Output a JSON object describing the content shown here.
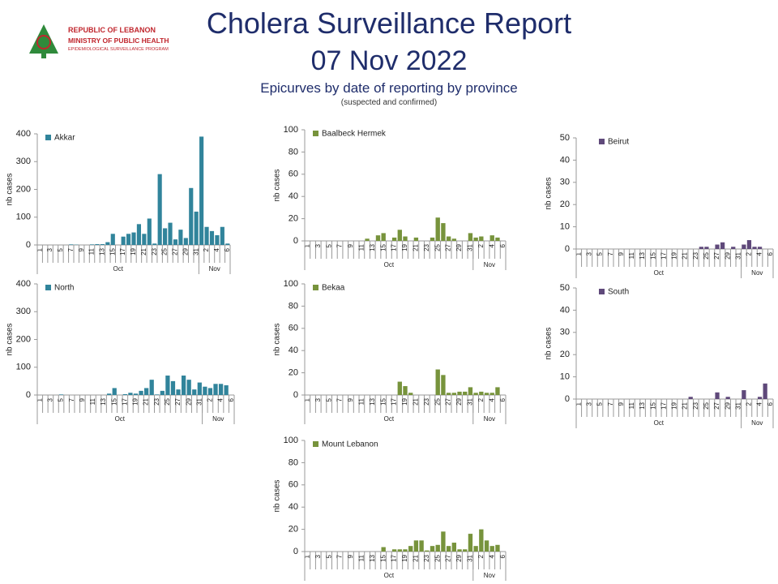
{
  "header": {
    "logo_line1": "REPUBLIC OF LEBANON",
    "logo_line2": "MINISTRY OF PUBLIC HEALTH",
    "logo_line3": "EPIDEMIOLOGICAL SURVEILLANCE PROGRAM",
    "title": "Cholera Surveillance Report",
    "date": "07 Nov 2022",
    "subtitle": "Epicurves by date of reporting by province",
    "note": "(suspected and confirmed)"
  },
  "chart_data": [
    {
      "type": "bar",
      "y_label": "nb cases",
      "ylim": [
        0,
        400
      ],
      "yticks": [
        0,
        100,
        200,
        300,
        400
      ],
      "categories": [
        "1",
        null,
        "3",
        null,
        "5",
        null,
        "7",
        null,
        "9",
        null,
        "11",
        null,
        "13",
        null,
        "15",
        null,
        "17",
        null,
        "19",
        null,
        "21",
        null,
        "23",
        null,
        "25",
        null,
        "27",
        null,
        "29",
        null,
        "31",
        null,
        "2",
        null,
        "4",
        null,
        "6"
      ],
      "months": [
        "Oct",
        "Oct",
        "Oct",
        "Oct",
        "Oct",
        "Oct",
        "Oct",
        "Oct",
        "Oct",
        "Oct",
        "Oct",
        "Oct",
        "Oct",
        "Oct",
        "Oct",
        "Oct",
        "Oct",
        "Oct",
        "Oct",
        "Oct",
        "Oct",
        "Oct",
        "Oct",
        "Oct",
        "Oct",
        "Oct",
        "Oct",
        "Oct",
        "Oct",
        "Oct",
        "Oct",
        "Nov",
        "Nov",
        "Nov",
        "Nov",
        "Nov",
        "Nov"
      ],
      "series": [
        {
          "name": "Akkar",
          "color": "#31849b",
          "values": [
            0,
            0,
            0,
            0,
            0,
            0,
            2,
            1,
            0,
            0,
            2,
            3,
            3,
            10,
            40,
            0,
            30,
            40,
            45,
            75,
            40,
            95,
            5,
            255,
            60,
            80,
            20,
            55,
            25,
            205,
            120,
            390,
            65,
            50,
            35,
            65,
            5
          ]
        }
      ]
    },
    {
      "type": "bar",
      "y_label": "nb cases",
      "ylim": [
        0,
        100
      ],
      "yticks": [
        0,
        20,
        40,
        60,
        80,
        100
      ],
      "categories": [
        "1",
        null,
        "3",
        null,
        "5",
        null,
        "7",
        null,
        "9",
        null,
        "11",
        null,
        "13",
        null,
        "15",
        null,
        "17",
        null,
        "19",
        null,
        "21",
        null,
        "23",
        null,
        "25",
        null,
        "27",
        null,
        "29",
        null,
        "31",
        null,
        "2",
        null,
        "4",
        null,
        "6"
      ],
      "months": [
        "Oct",
        "Oct",
        "Oct",
        "Oct",
        "Oct",
        "Oct",
        "Oct",
        "Oct",
        "Oct",
        "Oct",
        "Oct",
        "Oct",
        "Oct",
        "Oct",
        "Oct",
        "Oct",
        "Oct",
        "Oct",
        "Oct",
        "Oct",
        "Oct",
        "Oct",
        "Oct",
        "Oct",
        "Oct",
        "Oct",
        "Oct",
        "Oct",
        "Oct",
        "Oct",
        "Oct",
        "Nov",
        "Nov",
        "Nov",
        "Nov",
        "Nov",
        "Nov"
      ],
      "series": [
        {
          "name": "Baalbeck Hermek",
          "color": "#77933c",
          "values": [
            0,
            0,
            0,
            0,
            0,
            0,
            0,
            0,
            0,
            0,
            0,
            2,
            0,
            5,
            7,
            0,
            3,
            10,
            4,
            0,
            3,
            0,
            0,
            3,
            21,
            16,
            4,
            2,
            0,
            0,
            7,
            3,
            4,
            0,
            5,
            3,
            0
          ]
        }
      ]
    },
    {
      "type": "bar",
      "y_label": "nb cases",
      "ylim": [
        0,
        50
      ],
      "yticks": [
        0,
        10,
        20,
        30,
        40,
        50
      ],
      "categories": [
        "1",
        null,
        "3",
        null,
        "5",
        null,
        "7",
        null,
        "9",
        null,
        "11",
        null,
        "13",
        null,
        "15",
        null,
        "17",
        null,
        "19",
        null,
        "21",
        null,
        "23",
        null,
        "25",
        null,
        "27",
        null,
        "29",
        null,
        "31",
        null,
        "2",
        null,
        "4",
        null,
        "6"
      ],
      "months": [
        "Oct",
        "Oct",
        "Oct",
        "Oct",
        "Oct",
        "Oct",
        "Oct",
        "Oct",
        "Oct",
        "Oct",
        "Oct",
        "Oct",
        "Oct",
        "Oct",
        "Oct",
        "Oct",
        "Oct",
        "Oct",
        "Oct",
        "Oct",
        "Oct",
        "Oct",
        "Oct",
        "Oct",
        "Oct",
        "Oct",
        "Oct",
        "Oct",
        "Oct",
        "Oct",
        "Oct",
        "Nov",
        "Nov",
        "Nov",
        "Nov",
        "Nov",
        "Nov"
      ],
      "series": [
        {
          "name": "Beirut",
          "color": "#5f497a",
          "values": [
            0,
            0,
            0,
            0,
            0,
            0,
            0,
            0,
            0,
            0,
            0,
            0,
            0,
            0,
            0,
            0,
            0,
            0,
            0,
            0,
            0,
            0,
            0,
            1,
            1,
            0,
            2,
            3,
            0,
            1,
            0,
            2,
            4,
            1,
            1,
            0,
            0
          ]
        }
      ]
    },
    {
      "type": "bar",
      "y_label": "nb cases",
      "ylim": [
        0,
        400
      ],
      "yticks": [
        0,
        100,
        200,
        300,
        400
      ],
      "categories": [
        "1",
        null,
        "3",
        null,
        "5",
        null,
        "7",
        null,
        "9",
        null,
        "11",
        null,
        "13",
        null,
        "15",
        null,
        "17",
        null,
        "19",
        null,
        "21",
        null,
        "23",
        null,
        "25",
        null,
        "27",
        null,
        "29",
        null,
        "31",
        null,
        "2",
        null,
        "4",
        null,
        "6"
      ],
      "months": [
        "Oct",
        "Oct",
        "Oct",
        "Oct",
        "Oct",
        "Oct",
        "Oct",
        "Oct",
        "Oct",
        "Oct",
        "Oct",
        "Oct",
        "Oct",
        "Oct",
        "Oct",
        "Oct",
        "Oct",
        "Oct",
        "Oct",
        "Oct",
        "Oct",
        "Oct",
        "Oct",
        "Oct",
        "Oct",
        "Oct",
        "Oct",
        "Oct",
        "Oct",
        "Oct",
        "Oct",
        "Nov",
        "Nov",
        "Nov",
        "Nov",
        "Nov",
        "Nov"
      ],
      "series": [
        {
          "name": "North",
          "color": "#31849b",
          "values": [
            0,
            0,
            0,
            0,
            2,
            0,
            0,
            0,
            0,
            0,
            0,
            0,
            0,
            5,
            25,
            0,
            3,
            8,
            5,
            15,
            25,
            55,
            2,
            15,
            70,
            50,
            20,
            70,
            55,
            20,
            45,
            30,
            25,
            40,
            40,
            35,
            0
          ]
        }
      ]
    },
    {
      "type": "bar",
      "y_label": "nb cases",
      "ylim": [
        0,
        100
      ],
      "yticks": [
        0,
        20,
        40,
        60,
        80,
        100
      ],
      "categories": [
        "1",
        null,
        "3",
        null,
        "5",
        null,
        "7",
        null,
        "9",
        null,
        "11",
        null,
        "13",
        null,
        "15",
        null,
        "17",
        null,
        "19",
        null,
        "21",
        null,
        "23",
        null,
        "25",
        null,
        "27",
        null,
        "29",
        null,
        "31",
        null,
        "2",
        null,
        "4",
        null,
        "6"
      ],
      "months": [
        "Oct",
        "Oct",
        "Oct",
        "Oct",
        "Oct",
        "Oct",
        "Oct",
        "Oct",
        "Oct",
        "Oct",
        "Oct",
        "Oct",
        "Oct",
        "Oct",
        "Oct",
        "Oct",
        "Oct",
        "Oct",
        "Oct",
        "Oct",
        "Oct",
        "Oct",
        "Oct",
        "Oct",
        "Oct",
        "Oct",
        "Oct",
        "Oct",
        "Oct",
        "Oct",
        "Oct",
        "Nov",
        "Nov",
        "Nov",
        "Nov",
        "Nov",
        "Nov"
      ],
      "series": [
        {
          "name": "Bekaa",
          "color": "#77933c",
          "values": [
            0,
            0,
            0,
            0,
            0,
            0,
            0,
            0,
            0,
            0,
            0,
            0,
            0,
            0,
            0,
            0,
            0,
            12,
            8,
            2,
            0,
            0,
            0,
            0,
            23,
            18,
            2,
            2,
            3,
            3,
            7,
            2,
            3,
            2,
            2,
            7,
            0
          ]
        }
      ]
    },
    {
      "type": "bar",
      "y_label": "nb cases",
      "ylim": [
        0,
        50
      ],
      "yticks": [
        0,
        10,
        20,
        30,
        40,
        50
      ],
      "categories": [
        "1",
        null,
        "3",
        null,
        "5",
        null,
        "7",
        null,
        "9",
        null,
        "11",
        null,
        "13",
        null,
        "15",
        null,
        "17",
        null,
        "19",
        null,
        "21",
        null,
        "23",
        null,
        "25",
        null,
        "27",
        null,
        "29",
        null,
        "31",
        null,
        "2",
        null,
        "4",
        null,
        "6"
      ],
      "months": [
        "Oct",
        "Oct",
        "Oct",
        "Oct",
        "Oct",
        "Oct",
        "Oct",
        "Oct",
        "Oct",
        "Oct",
        "Oct",
        "Oct",
        "Oct",
        "Oct",
        "Oct",
        "Oct",
        "Oct",
        "Oct",
        "Oct",
        "Oct",
        "Oct",
        "Oct",
        "Oct",
        "Oct",
        "Oct",
        "Oct",
        "Oct",
        "Oct",
        "Oct",
        "Oct",
        "Oct",
        "Nov",
        "Nov",
        "Nov",
        "Nov",
        "Nov",
        "Nov"
      ],
      "series": [
        {
          "name": "South",
          "color": "#5f497a",
          "values": [
            0,
            0,
            0,
            0,
            0,
            0,
            0,
            0,
            0,
            0,
            0,
            0,
            0,
            0,
            0,
            0,
            0,
            0,
            0,
            0,
            0,
            1,
            0,
            0,
            0,
            0,
            3,
            0,
            1,
            0,
            0,
            4,
            0,
            0,
            1,
            7,
            0
          ]
        }
      ]
    },
    {
      "type": "bar",
      "y_label": "nb cases",
      "ylim": [
        0,
        100
      ],
      "yticks": [
        0,
        20,
        40,
        60,
        80,
        100
      ],
      "categories": [
        "1",
        null,
        "3",
        null,
        "5",
        null,
        "7",
        null,
        "9",
        null,
        "11",
        null,
        "13",
        null,
        "15",
        null,
        "17",
        null,
        "19",
        null,
        "21",
        null,
        "23",
        null,
        "25",
        null,
        "27",
        null,
        "29",
        null,
        "31",
        null,
        "2",
        null,
        "4",
        null,
        "6"
      ],
      "months": [
        "Oct",
        "Oct",
        "Oct",
        "Oct",
        "Oct",
        "Oct",
        "Oct",
        "Oct",
        "Oct",
        "Oct",
        "Oct",
        "Oct",
        "Oct",
        "Oct",
        "Oct",
        "Oct",
        "Oct",
        "Oct",
        "Oct",
        "Oct",
        "Oct",
        "Oct",
        "Oct",
        "Oct",
        "Oct",
        "Oct",
        "Oct",
        "Oct",
        "Oct",
        "Oct",
        "Oct",
        "Nov",
        "Nov",
        "Nov",
        "Nov",
        "Nov",
        "Nov"
      ],
      "series": [
        {
          "name": "Mount Lebanon",
          "color": "#77933c",
          "values": [
            0,
            0,
            0,
            0,
            0,
            0,
            0,
            0,
            0,
            0,
            0,
            0,
            0,
            0,
            4,
            0,
            2,
            2,
            2,
            5,
            10,
            10,
            1,
            5,
            6,
            18,
            5,
            8,
            2,
            2,
            16,
            5,
            20,
            10,
            5,
            6,
            0
          ]
        }
      ]
    }
  ]
}
